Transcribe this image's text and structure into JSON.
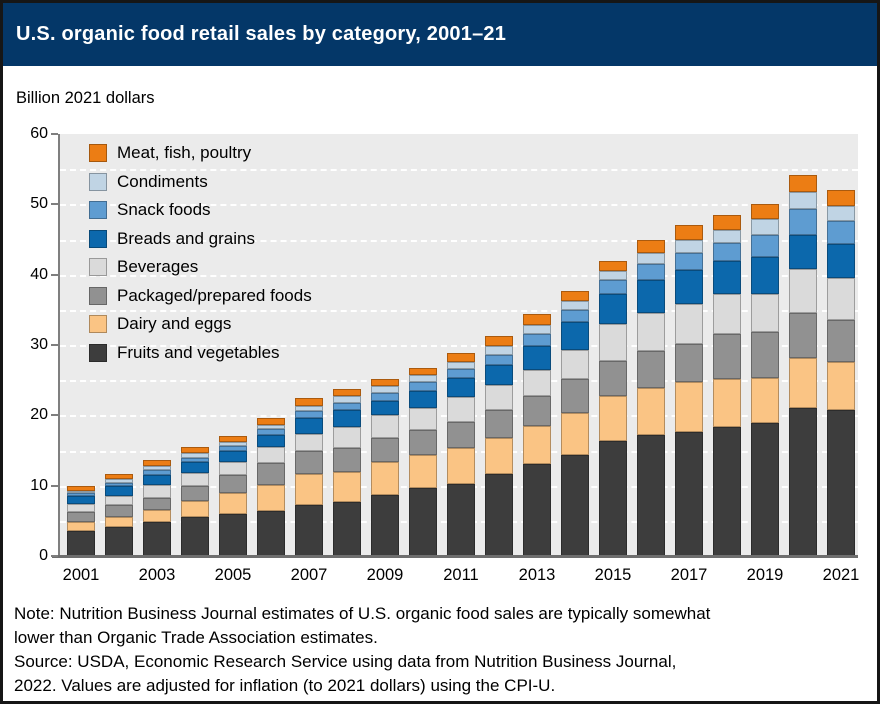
{
  "header": {
    "title": "U.S. organic food retail sales by category, 2001–21"
  },
  "units_label": "Billion 2021 dollars",
  "footer": {
    "note": "Note: Nutrition Business Journal estimates of U.S. organic food sales are typically somewhat lower than Organic Trade Association estimates.",
    "source": "Source: USDA, Economic Research Service using data from Nutrition Business Journal, 2022. Values are adjusted for inflation (to 2021 dollars) using the CPI-U."
  },
  "colors": {
    "title_band": "#043768",
    "title_text": "#FFFFFF",
    "frame_border": "#161616",
    "plot_background": "#EBEBEB",
    "gridline": "#FFFFFF",
    "axis": "#7F7F7F",
    "baseline": "#6E6E6E",
    "text": "#000000"
  },
  "chart_data": {
    "type": "bar",
    "stacked": true,
    "title": "U.S. organic food retail sales by category, 2001–21",
    "xlabel": "",
    "ylabel": "Billion 2021 dollars",
    "x": [
      2001,
      2002,
      2003,
      2004,
      2005,
      2006,
      2007,
      2008,
      2009,
      2010,
      2011,
      2012,
      2013,
      2014,
      2015,
      2016,
      2017,
      2018,
      2019,
      2020,
      2021
    ],
    "xtick_labels": [
      "2001",
      "2003",
      "2005",
      "2007",
      "2009",
      "2011",
      "2013",
      "2015",
      "2017",
      "2019",
      "2021"
    ],
    "ylim": [
      0,
      60
    ],
    "yticks": [
      0,
      10,
      20,
      30,
      40,
      50,
      60
    ],
    "gridline_step": 5,
    "grid": "white dashed horizontal",
    "legend_position": "top-left inside plot, reverse stack order",
    "series": [
      {
        "name": "Fruits and vegetables",
        "color": "#3D3D3D",
        "values": [
          3.5,
          4.1,
          4.9,
          5.5,
          6.0,
          6.4,
          7.3,
          7.7,
          8.7,
          9.7,
          10.3,
          11.6,
          13.1,
          14.4,
          16.3,
          17.2,
          17.7,
          18.4,
          18.9,
          21.0,
          20.8
        ]
      },
      {
        "name": "Dairy and eggs",
        "color": "#FAC484",
        "values": [
          1.4,
          1.5,
          1.7,
          2.3,
          2.9,
          3.7,
          4.3,
          4.3,
          4.6,
          4.6,
          5.0,
          5.2,
          5.4,
          6.0,
          6.4,
          6.7,
          7.0,
          6.7,
          6.4,
          7.1,
          6.8
        ]
      },
      {
        "name": "Packaged/prepared foods",
        "color": "#919191",
        "values": [
          1.4,
          1.6,
          1.7,
          2.1,
          2.6,
          3.1,
          3.3,
          3.3,
          3.5,
          3.6,
          3.7,
          3.9,
          4.2,
          4.7,
          5.0,
          5.2,
          5.5,
          6.4,
          6.5,
          6.4,
          5.9
        ]
      },
      {
        "name": "Beverages",
        "color": "#DADADA",
        "values": [
          1.1,
          1.4,
          1.8,
          1.9,
          1.9,
          2.3,
          2.5,
          3.0,
          3.2,
          3.2,
          3.6,
          3.6,
          3.8,
          4.2,
          5.3,
          5.5,
          5.7,
          5.7,
          5.5,
          6.3,
          6.0
        ]
      },
      {
        "name": "Breads and grains",
        "color": "#0C68AC",
        "values": [
          1.1,
          1.3,
          1.4,
          1.5,
          1.6,
          1.7,
          2.2,
          2.4,
          2.1,
          2.4,
          2.7,
          2.8,
          3.4,
          4.0,
          4.3,
          4.7,
          4.8,
          4.8,
          5.2,
          4.9,
          4.9
        ]
      },
      {
        "name": "Snack foods",
        "color": "#5E9CD1",
        "values": [
          0.4,
          0.5,
          0.7,
          0.7,
          0.7,
          0.8,
          1.0,
          1.1,
          1.1,
          1.2,
          1.3,
          1.5,
          1.7,
          1.7,
          2.0,
          2.2,
          2.4,
          2.5,
          3.2,
          3.7,
          3.2
        ]
      },
      {
        "name": "Condiments",
        "color": "#C0D4E4",
        "values": [
          0.4,
          0.5,
          0.6,
          0.6,
          0.5,
          0.6,
          0.8,
          1.0,
          1.0,
          1.0,
          1.0,
          1.2,
          1.3,
          1.3,
          1.2,
          1.6,
          1.9,
          1.9,
          2.2,
          2.3,
          2.2
        ]
      },
      {
        "name": "Meat, fish, poultry",
        "color": "#EC7D14",
        "values": [
          0.6,
          0.7,
          0.8,
          0.9,
          0.9,
          1.0,
          1.0,
          1.0,
          0.9,
          1.1,
          1.2,
          1.5,
          1.5,
          1.4,
          1.5,
          1.8,
          2.0,
          2.1,
          2.2,
          2.5,
          2.3
        ]
      }
    ],
    "totals": [
      9.9,
      11.6,
      13.6,
      15.5,
      17.1,
      19.6,
      22.4,
      23.8,
      25.1,
      26.8,
      28.8,
      31.3,
      34.4,
      37.7,
      42.0,
      44.9,
      47.0,
      48.5,
      50.1,
      54.2,
      52.1
    ]
  }
}
